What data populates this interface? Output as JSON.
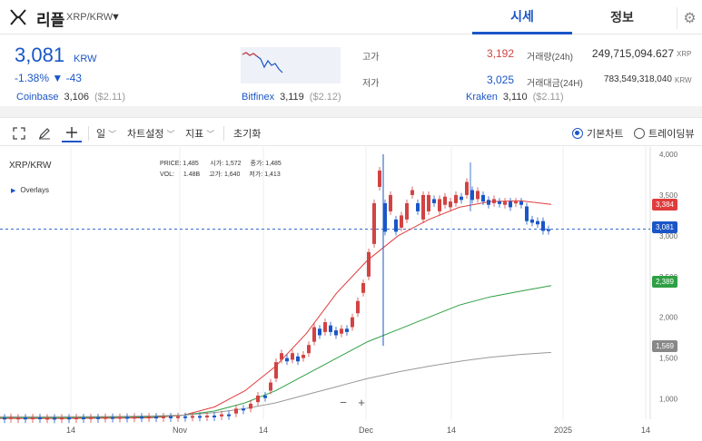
{
  "header": {
    "coin_name": "리플",
    "pair": "XRP/KRW",
    "caret": "▼",
    "tabs": [
      "시세",
      "정보"
    ],
    "gear": "⚙"
  },
  "summary": {
    "price": "3,081",
    "unit": "KRW",
    "change": "-1.38% ▼ -43",
    "high_label": "고가",
    "high": "3,192",
    "low_label": "저가",
    "low": "3,025",
    "volume_label": "거래량(24h)",
    "volume": "249,715,094.627",
    "volume_unit": "XRP",
    "turnover_label": "거래대금(24H)",
    "turnover": "783,549,318,040",
    "turnover_unit": "KRW"
  },
  "exchanges": [
    {
      "name": "Coinbase",
      "price": "3,106",
      "usd": "($2.11)"
    },
    {
      "name": "Bitfinex",
      "price": "3,119",
      "usd": "($2.12)"
    },
    {
      "name": "Kraken",
      "price": "3,110",
      "usd": "($2.11)"
    }
  ],
  "toolbar": {
    "interval": "일",
    "chart_settings": "차트설정",
    "indicators": "지표",
    "reset": "초기화",
    "basic_chart": "기본차트",
    "tradingview": "트레이딩뷰"
  },
  "chart": {
    "pair": "XRP/KRW",
    "overlays": "Overlays",
    "ohlc": {
      "price_label": "PRICE:",
      "price": "1,485",
      "open_label": "시가:",
      "open": "1,572",
      "close_label": "종가:",
      "close": "1,485",
      "vol_label": "VOL:",
      "vol": "1.48B",
      "high_label": "고가:",
      "high": "1,640",
      "low_label": "저가:",
      "low": "1,413"
    },
    "zoom_out": "−",
    "zoom_in": "+",
    "badges": {
      "ma1": "3,384",
      "current": "3,081",
      "ma2": "2,389",
      "ma3": "1,569"
    },
    "colors": {
      "up": "#d24343",
      "down": "#1a56c7",
      "ma_red": "#e03c3c",
      "ma_green": "#2ea043",
      "ma_gray": "#999999",
      "accent": "#1a56c7"
    }
  },
  "chart_data": {
    "type": "line",
    "y_axis_labels": [
      "4,000",
      "3,500",
      "3,000",
      "2,500",
      "2,000",
      "1,500",
      "1,000"
    ],
    "x_axis_labels": [
      "14",
      "Nov",
      "14",
      "Dec",
      "14",
      "2025",
      "14"
    ],
    "ylim": [
      750,
      4000
    ],
    "current_price": 3081,
    "series": [
      {
        "color": "#e03c3c",
        "values": [
          760,
          760,
          760,
          762,
          765,
          770,
          800,
          900,
          1100,
          1400,
          1800,
          2300,
          2700,
          3000,
          3200,
          3350,
          3420,
          3430,
          3384
        ]
      },
      {
        "color": "#2ea043",
        "values": [
          770,
          770,
          770,
          772,
          775,
          780,
          800,
          850,
          950,
          1100,
          1300,
          1500,
          1700,
          1850,
          2000,
          2150,
          2250,
          2320,
          2389
        ]
      },
      {
        "color": "#999999",
        "values": [
          780,
          780,
          780,
          782,
          785,
          790,
          800,
          830,
          880,
          950,
          1050,
          1150,
          1250,
          1330,
          1400,
          1460,
          1510,
          1545,
          1569
        ]
      }
    ]
  }
}
